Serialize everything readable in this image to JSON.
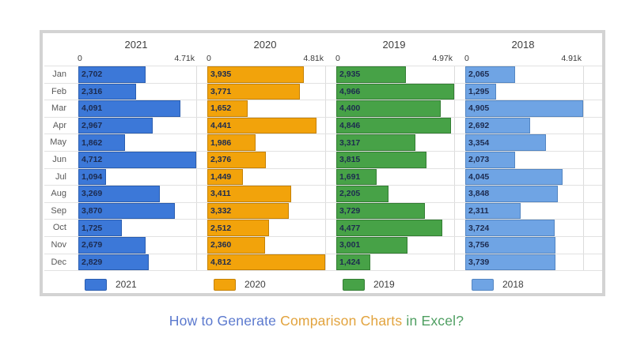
{
  "caption": {
    "part1": "How to Generate ",
    "part2": "Comparison Charts ",
    "part3": "in Excel?",
    "color1": "#5b79ce",
    "color2": "#e2a33d",
    "color3": "#4f9f62"
  },
  "chart_data": {
    "type": "bar",
    "orientation": "horizontal",
    "grid": true,
    "legend_position": "bottom",
    "categories": [
      "Jan",
      "Feb",
      "Mar",
      "Apr",
      "May",
      "Jun",
      "Jul",
      "Aug",
      "Sep",
      "Oct",
      "Nov",
      "Dec"
    ],
    "series": [
      {
        "name": "2021",
        "color": "#3c78d8",
        "border_color": "#2a5db0",
        "axis_min_label": "0",
        "axis_max_label": "4.71k",
        "axis_max": 4712,
        "values": [
          2702,
          2316,
          4091,
          2967,
          1862,
          4712,
          1094,
          3269,
          3870,
          1725,
          2679,
          2829
        ]
      },
      {
        "name": "2020",
        "color": "#f2a30b",
        "border_color": "#c58104",
        "axis_min_label": "0",
        "axis_max_label": "4.81k",
        "axis_max": 4812,
        "values": [
          3935,
          3771,
          1652,
          4441,
          1986,
          2376,
          1449,
          3411,
          3332,
          2512,
          2360,
          4812
        ]
      },
      {
        "name": "2019",
        "color": "#47a247",
        "border_color": "#337d33",
        "axis_min_label": "0",
        "axis_max_label": "4.97k",
        "axis_max": 4966,
        "values": [
          2935,
          4966,
          4400,
          4846,
          3317,
          3815,
          1691,
          2205,
          3729,
          4477,
          3001,
          1424
        ]
      },
      {
        "name": "2018",
        "color": "#6fa4e4",
        "border_color": "#5486c2",
        "axis_min_label": "0",
        "axis_max_label": "4.91k",
        "axis_max": 4905,
        "values": [
          2065,
          1295,
          4905,
          2692,
          3354,
          2073,
          4045,
          3848,
          2311,
          3724,
          3756,
          3739
        ]
      }
    ]
  }
}
